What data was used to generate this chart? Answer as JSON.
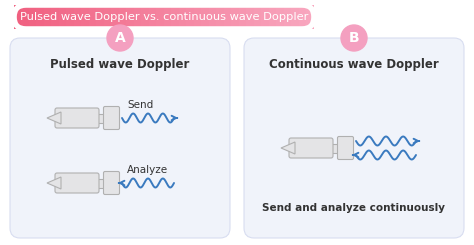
{
  "title": "Pulsed wave Doppler vs. continuous wave Doppler",
  "bg_color": "#ffffff",
  "panel_bg": "#f0f3fa",
  "panel_border": "#d8ddf0",
  "label_A": "A",
  "label_B": "B",
  "circle_color": "#f4a0c0",
  "text_A": "Pulsed wave Doppler",
  "text_B": "Continuous wave Doppler",
  "send_label": "Send",
  "analyze_label": "Analyze",
  "bottom_label": "Send and analyze continuously",
  "wave_color": "#3a7abf",
  "probe_fill": "#e4e4e6",
  "probe_border": "#b0b0b0",
  "text_color": "#333333",
  "title_grad_left": "#f06080",
  "title_grad_right": "#f8a8c0",
  "title_text_color": "#ffffff"
}
